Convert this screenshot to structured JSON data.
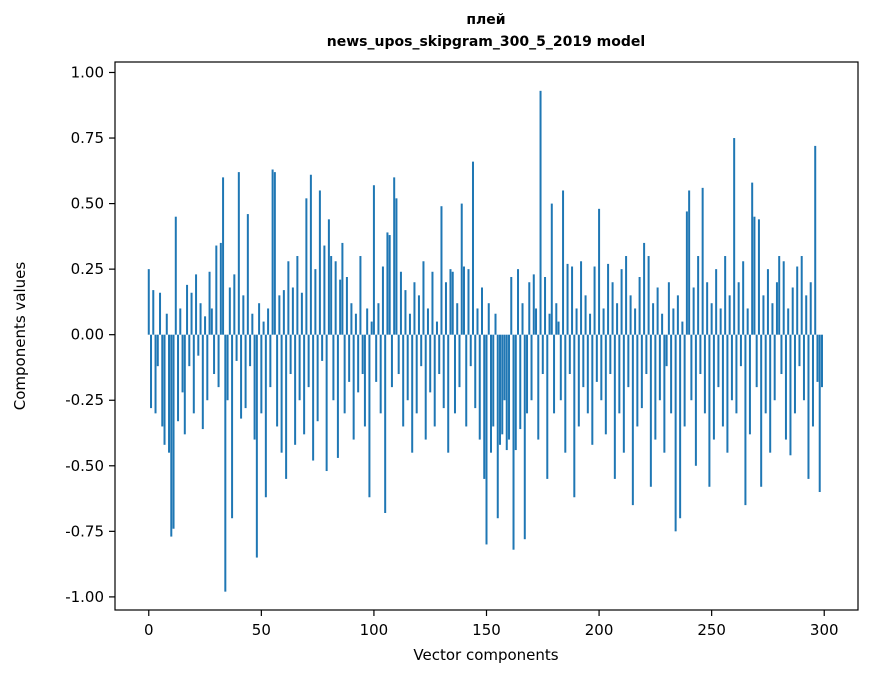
{
  "figure": {
    "background": "#ffffff",
    "bar_color": "#1f77b4",
    "axis_color": "#000000"
  },
  "chart_data": {
    "type": "bar",
    "title": "плей",
    "subtitle": "news_upos_skipgram_300_5_2019 model",
    "xlabel": "Vector components",
    "ylabel": "Components values",
    "legend": "none",
    "grid": false,
    "xlim": [
      -15,
      315
    ],
    "ylim": [
      -1.05,
      1.04
    ],
    "xticks": [
      0,
      50,
      100,
      150,
      200,
      250,
      300
    ],
    "yticks": [
      "1.00",
      "0.75",
      "0.50",
      "0.25",
      "0.00",
      "-0.25",
      "-0.50",
      "-0.75",
      "-1.00"
    ],
    "ytick_values": [
      1.0,
      0.75,
      0.5,
      0.25,
      0.0,
      -0.25,
      -0.5,
      -0.75,
      -1.0
    ],
    "x_start": 0,
    "values": [
      0.25,
      -0.28,
      0.17,
      -0.3,
      -0.12,
      0.16,
      -0.35,
      -0.42,
      0.08,
      -0.45,
      -0.77,
      -0.74,
      0.45,
      -0.33,
      0.1,
      -0.22,
      -0.38,
      0.19,
      -0.12,
      0.16,
      -0.3,
      0.23,
      -0.08,
      0.12,
      -0.36,
      0.07,
      -0.25,
      0.24,
      0.1,
      -0.15,
      0.34,
      -0.2,
      0.35,
      0.6,
      -0.98,
      -0.25,
      0.18,
      -0.7,
      0.23,
      -0.1,
      0.62,
      -0.32,
      0.15,
      -0.28,
      0.46,
      -0.12,
      0.08,
      -0.4,
      -0.85,
      0.12,
      -0.3,
      0.05,
      -0.62,
      0.1,
      -0.2,
      0.63,
      0.62,
      -0.35,
      0.15,
      -0.45,
      0.17,
      -0.55,
      0.28,
      -0.15,
      0.18,
      -0.42,
      0.3,
      -0.25,
      0.16,
      -0.38,
      0.52,
      -0.2,
      0.61,
      -0.48,
      0.25,
      -0.33,
      0.55,
      -0.1,
      0.34,
      -0.52,
      0.44,
      0.3,
      -0.25,
      0.28,
      -0.47,
      0.21,
      0.35,
      -0.3,
      0.22,
      -0.18,
      0.12,
      -0.4,
      0.08,
      -0.22,
      0.3,
      -0.15,
      -0.35,
      0.1,
      -0.62,
      0.05,
      0.57,
      -0.18,
      0.12,
      -0.3,
      0.26,
      -0.68,
      0.39,
      0.38,
      -0.2,
      0.6,
      0.52,
      -0.15,
      0.24,
      -0.35,
      0.17,
      -0.25,
      0.08,
      -0.45,
      0.2,
      -0.3,
      0.15,
      -0.12,
      0.28,
      -0.4,
      0.1,
      -0.22,
      0.24,
      -0.35,
      0.05,
      -0.15,
      0.49,
      -0.28,
      0.2,
      -0.45,
      0.25,
      0.24,
      -0.3,
      0.12,
      -0.2,
      0.5,
      0.26,
      -0.35,
      0.25,
      -0.12,
      0.66,
      -0.28,
      0.1,
      -0.4,
      0.18,
      -0.55,
      -0.8,
      0.12,
      -0.45,
      -0.35,
      0.08,
      -0.7,
      -0.42,
      -0.38,
      -0.25,
      -0.44,
      -0.4,
      0.22,
      -0.82,
      -0.44,
      0.25,
      -0.36,
      0.12,
      -0.78,
      -0.3,
      0.2,
      -0.25,
      0.23,
      0.1,
      -0.4,
      0.93,
      -0.15,
      0.22,
      -0.55,
      0.08,
      0.5,
      -0.3,
      0.12,
      0.05,
      -0.25,
      0.55,
      -0.45,
      0.27,
      -0.15,
      0.26,
      -0.62,
      0.1,
      -0.35,
      0.28,
      -0.2,
      0.15,
      -0.3,
      0.08,
      -0.42,
      0.26,
      -0.18,
      0.48,
      -0.25,
      0.1,
      -0.38,
      0.27,
      -0.15,
      0.2,
      -0.55,
      0.12,
      -0.3,
      0.25,
      -0.45,
      0.3,
      -0.2,
      0.15,
      -0.65,
      0.1,
      -0.35,
      0.22,
      -0.28,
      0.35,
      -0.15,
      0.3,
      -0.58,
      0.12,
      -0.4,
      0.18,
      -0.25,
      0.08,
      -0.45,
      -0.12,
      0.2,
      -0.3,
      0.1,
      -0.75,
      0.15,
      -0.7,
      0.05,
      -0.35,
      0.47,
      0.55,
      -0.25,
      0.18,
      -0.5,
      0.3,
      -0.15,
      0.56,
      -0.3,
      0.2,
      -0.58,
      0.12,
      -0.4,
      0.25,
      -0.2,
      0.1,
      -0.35,
      0.3,
      -0.45,
      0.15,
      -0.25,
      0.75,
      -0.3,
      0.2,
      -0.12,
      0.28,
      -0.65,
      0.1,
      -0.38,
      0.58,
      0.45,
      -0.2,
      0.44,
      -0.58,
      0.15,
      -0.3,
      0.25,
      -0.45,
      0.12,
      -0.25,
      0.2,
      0.3,
      -0.15,
      0.28,
      -0.4,
      0.1,
      -0.46,
      0.18,
      -0.3,
      0.26,
      -0.12,
      0.3,
      -0.25,
      0.15,
      -0.55,
      0.2,
      -0.35,
      0.72,
      -0.18,
      -0.6,
      -0.2
    ]
  }
}
